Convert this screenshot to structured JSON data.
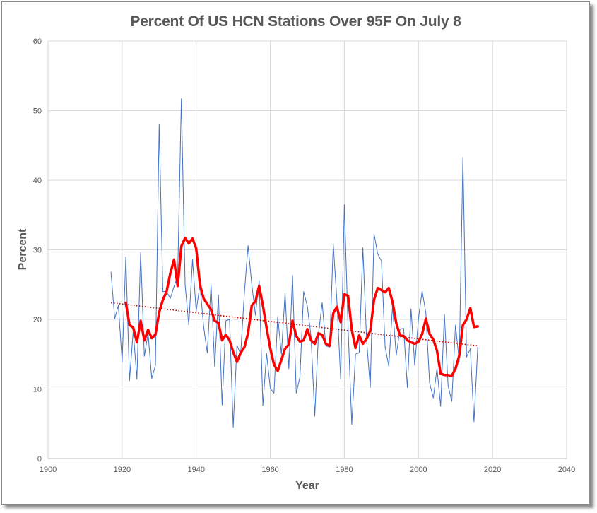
{
  "chart_data": {
    "type": "line",
    "title": "Percent Of US HCN Stations Over 95F On July 8",
    "xlabel": "Year",
    "ylabel": "Percent",
    "xlim": [
      1900,
      2040
    ],
    "ylim": [
      0,
      60
    ],
    "x_ticks": [
      1900,
      1920,
      1940,
      1960,
      1980,
      2000,
      2020,
      2040
    ],
    "y_ticks": [
      0,
      10,
      20,
      30,
      40,
      50,
      60
    ],
    "grid": true,
    "legend": "none",
    "series": [
      {
        "style": "thin-line",
        "color": "#4472C4",
        "x": [
          1917,
          1918,
          1919,
          1920,
          1921,
          1922,
          1923,
          1924,
          1925,
          1926,
          1927,
          1928,
          1929,
          1930,
          1931,
          1932,
          1933,
          1934,
          1935,
          1936,
          1937,
          1938,
          1939,
          1940,
          1941,
          1942,
          1943,
          1944,
          1945,
          1946,
          1947,
          1948,
          1949,
          1950,
          1951,
          1952,
          1953,
          1954,
          1955,
          1956,
          1957,
          1958,
          1959,
          1960,
          1961,
          1962,
          1963,
          1964,
          1965,
          1966,
          1967,
          1968,
          1969,
          1970,
          1971,
          1972,
          1973,
          1974,
          1975,
          1976,
          1977,
          1978,
          1979,
          1980,
          1981,
          1982,
          1983,
          1984,
          1985,
          1986,
          1987,
          1988,
          1989,
          1990,
          1991,
          1992,
          1993,
          1994,
          1995,
          1996,
          1997,
          1998,
          1999,
          2000,
          2001,
          2002,
          2003,
          2004,
          2005,
          2006,
          2007,
          2008,
          2009,
          2010,
          2011,
          2012,
          2013,
          2014,
          2015,
          2016
        ],
        "y": [
          26.8,
          20.1,
          22.0,
          13.9,
          29.0,
          11.2,
          18.4,
          11.4,
          29.6,
          14.7,
          18.0,
          11.5,
          13.4,
          48.0,
          24.0,
          24.0,
          23.0,
          24.7,
          26.2,
          51.7,
          25.0,
          19.2,
          28.6,
          21.2,
          25.0,
          19.0,
          15.2,
          25.0,
          13.2,
          23.5,
          7.7,
          19.8,
          20.0,
          4.5,
          16.3,
          15.0,
          23.8,
          30.6,
          25.0,
          20.6,
          25.6,
          7.6,
          15.1,
          10.1,
          9.4,
          20.4,
          15.0,
          23.8,
          12.9,
          26.3,
          9.4,
          11.7,
          24.0,
          21.9,
          17.6,
          6.1,
          17.8,
          22.4,
          16.2,
          16.0,
          30.8,
          22.6,
          11.4,
          36.5,
          18.7,
          4.9,
          15.0,
          15.2,
          30.3,
          17.0,
          10.2,
          32.3,
          29.4,
          28.4,
          16.0,
          13.3,
          21.9,
          14.8,
          18.6,
          18.7,
          10.2,
          21.5,
          13.4,
          20.1,
          24.1,
          20.9,
          10.9,
          8.7,
          13.0,
          7.5,
          20.7,
          10.5,
          8.2,
          19.2,
          13.9,
          43.3,
          14.6,
          15.8,
          5.3,
          16.0
        ]
      },
      {
        "style": "moving-average",
        "color": "#FF0000",
        "x": [
          1921,
          1922,
          1923,
          1924,
          1925,
          1926,
          1927,
          1928,
          1929,
          1930,
          1931,
          1932,
          1933,
          1934,
          1935,
          1936,
          1937,
          1938,
          1939,
          1940,
          1941,
          1942,
          1943,
          1944,
          1945,
          1946,
          1947,
          1948,
          1949,
          1950,
          1951,
          1952,
          1953,
          1954,
          1955,
          1956,
          1957,
          1958,
          1959,
          1960,
          1961,
          1962,
          1963,
          1964,
          1965,
          1966,
          1967,
          1968,
          1969,
          1970,
          1971,
          1972,
          1973,
          1974,
          1975,
          1976,
          1977,
          1978,
          1979,
          1980,
          1981,
          1982,
          1983,
          1984,
          1985,
          1986,
          1987,
          1988,
          1989,
          1990,
          1991,
          1992,
          1993,
          1994,
          1995,
          1996,
          1997,
          1998,
          1999,
          2000,
          2001,
          2002,
          2003,
          2004,
          2005,
          2006,
          2007,
          2008,
          2009,
          2010,
          2011,
          2012,
          2013,
          2014,
          2015,
          2016
        ],
        "y": [
          22.4,
          19.2,
          18.8,
          16.7,
          19.8,
          17.0,
          18.5,
          17.3,
          17.8,
          21.0,
          22.8,
          24.0,
          26.6,
          28.6,
          24.8,
          30.5,
          31.7,
          30.9,
          31.6,
          30.2,
          25.0,
          23.0,
          22.2,
          21.4,
          19.8,
          19.5,
          17.0,
          17.8,
          17.0,
          15.3,
          13.9,
          15.2,
          16.0,
          18.0,
          22.0,
          22.6,
          24.8,
          22.0,
          18.8,
          15.8,
          13.5,
          12.6,
          14.2,
          15.8,
          16.4,
          19.8,
          17.6,
          16.8,
          17.0,
          18.6,
          17.0,
          16.5,
          18.0,
          17.8,
          16.5,
          16.2,
          20.9,
          21.8,
          19.6,
          23.6,
          23.4,
          18.5,
          15.9,
          17.7,
          16.5,
          17.2,
          18.4,
          22.8,
          24.5,
          24.2,
          23.9,
          24.5,
          22.5,
          19.5,
          17.7,
          17.6,
          17.0,
          16.7,
          16.5,
          16.8,
          17.9,
          20.1,
          17.9,
          17.1,
          15.5,
          12.2,
          12.0,
          12.0,
          11.9,
          12.9,
          14.8,
          19.2,
          20.0,
          21.6,
          18.9,
          19.0
        ]
      },
      {
        "style": "linear-trend",
        "color": "#C00000",
        "x": [
          1917,
          2016
        ],
        "y": [
          22.4,
          16.2
        ]
      }
    ]
  }
}
